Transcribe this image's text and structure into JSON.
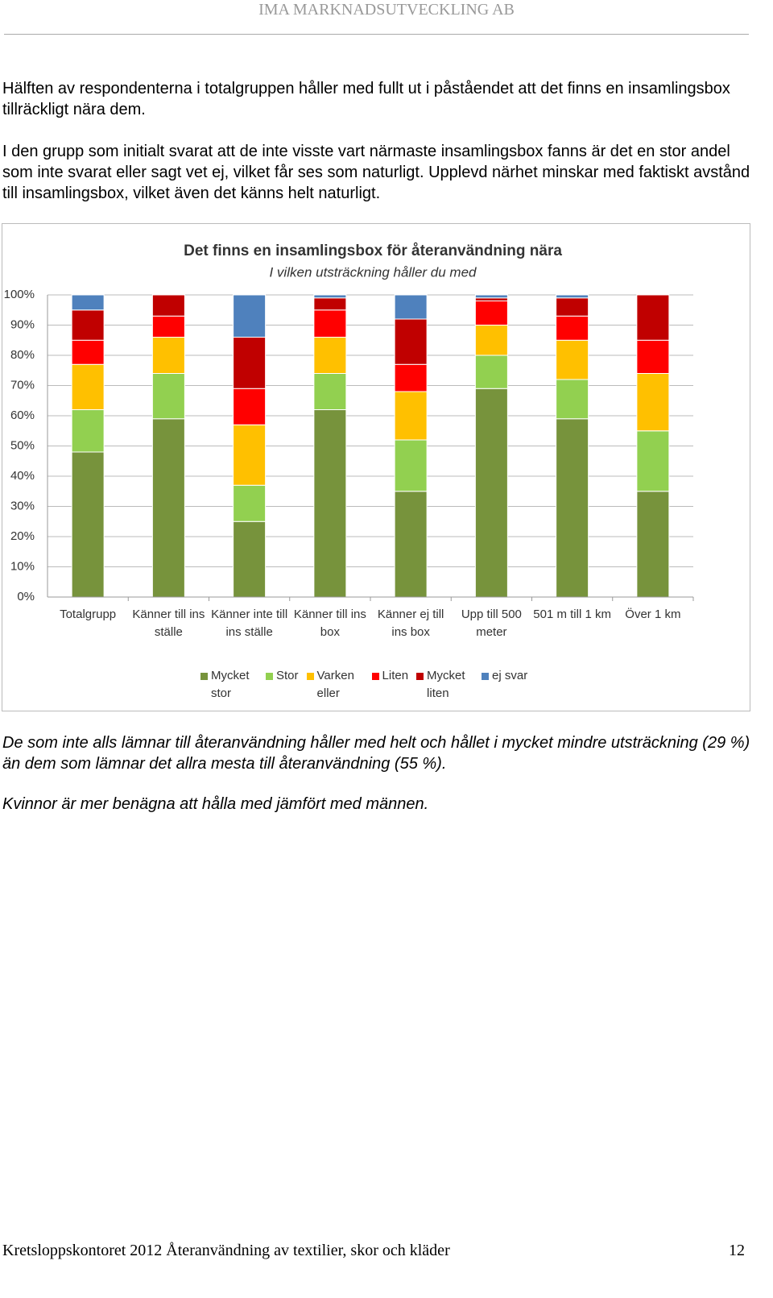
{
  "header": {
    "title": "IMA MARKNADSUTVECKLING AB"
  },
  "paragraphs": [
    "Hälften av respondenterna i totalgruppen håller med fullt ut i påståendet att det finns en insamlingsbox tillräckligt nära dem.",
    "I den grupp som initialt svarat att de inte visste vart närmaste insamlingsbox fanns är det en stor andel som inte svarat eller sagt vet ej, vilket får ses som naturligt. Upplevd närhet minskar med faktiskt avstånd till insamlingsbox, vilket även det känns helt naturligt."
  ],
  "chart_data": {
    "type": "stacked-bar",
    "title": "Det finns en insamlingsbox för återanvändning nära",
    "subtitle": "I vilken utsträckning håller du med",
    "categories": [
      "Totalgrupp",
      "Känner till ins ställe",
      "Känner inte till ins ställe",
      "Känner till ins box",
      "Känner ej till ins box",
      "Upp till 500 meter",
      "501 m till 1 km",
      "Över 1 km"
    ],
    "series": [
      {
        "name": "Mycket stor",
        "color": "#77933c",
        "values": [
          48,
          59,
          25,
          62,
          35,
          69,
          59,
          35
        ]
      },
      {
        "name": "Stor",
        "color": "#92d050",
        "values": [
          14,
          15,
          12,
          12,
          17,
          11,
          13,
          20
        ]
      },
      {
        "name": "Varken eller",
        "color": "#ffc000",
        "values": [
          15,
          12,
          20,
          12,
          16,
          10,
          13,
          19
        ]
      },
      {
        "name": "Liten",
        "color": "#ff0000",
        "values": [
          8,
          7,
          12,
          9,
          9,
          8,
          8,
          11
        ]
      },
      {
        "name": "Mycket liten",
        "color": "#c00000",
        "values": [
          10,
          7,
          17,
          4,
          15,
          1,
          6,
          15
        ]
      },
      {
        "name": "ej svar",
        "color": "#4f81bd",
        "values": [
          5,
          0,
          14,
          1,
          8,
          1,
          1,
          0
        ]
      }
    ],
    "ylim": [
      0,
      100
    ],
    "yticks": [
      {
        "value": 0,
        "label": "0%"
      },
      {
        "value": 10,
        "label": "10%"
      },
      {
        "value": 20,
        "label": "20%"
      },
      {
        "value": 30,
        "label": "30%"
      },
      {
        "value": 40,
        "label": "40%"
      },
      {
        "value": 50,
        "label": "50%"
      },
      {
        "value": 60,
        "label": "60%"
      },
      {
        "value": 70,
        "label": "70%"
      },
      {
        "value": 80,
        "label": "80%"
      },
      {
        "value": 90,
        "label": "90%"
      },
      {
        "value": 100,
        "label": "100%"
      }
    ],
    "grid": true
  },
  "notes": [
    "De som inte alls lämnar till återanvändning håller med helt och hållet i mycket mindre utsträckning (29 %) än dem som lämnar det allra mesta till återanvändning (55 %).",
    "Kvinnor är mer benägna att hålla med jämfört med männen."
  ],
  "footer": {
    "text": "Kretsloppskontoret 2012 Återanvändning av textilier, skor och kläder",
    "page": "12"
  }
}
